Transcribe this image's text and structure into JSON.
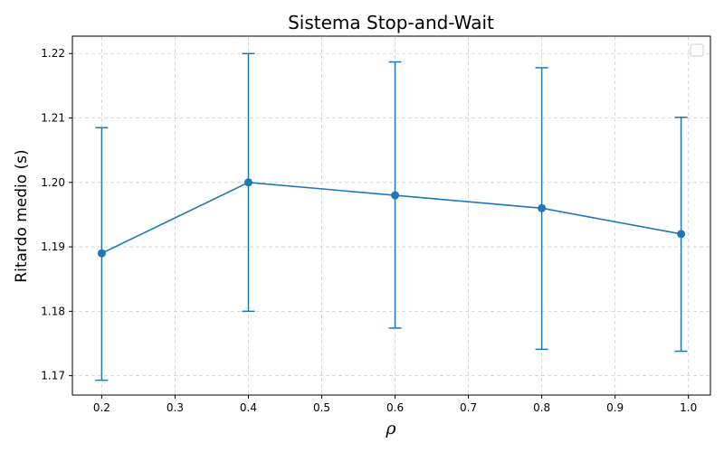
{
  "chart_data": {
    "type": "line",
    "title": "Sistema Stop-and-Wait",
    "xlabel": "ρ",
    "ylabel": "Ritardo medio (s)",
    "xlim": [
      0.16,
      1.03
    ],
    "ylim": [
      1.167,
      1.2227
    ],
    "x_ticks": [
      0.2,
      0.3,
      0.4,
      0.5,
      0.6,
      0.7,
      0.8,
      0.9,
      1.0
    ],
    "x_tick_labels": [
      "0.2",
      "0.3",
      "0.4",
      "0.5",
      "0.6",
      "0.7",
      "0.8",
      "0.9",
      "1.0"
    ],
    "y_ticks": [
      1.17,
      1.18,
      1.19,
      1.2,
      1.21,
      1.22
    ],
    "y_tick_labels": [
      "1.17",
      "1.18",
      "1.19",
      "1.20",
      "1.21",
      "1.22"
    ],
    "grid": true,
    "grid_style": "dashed",
    "legend_placement": "top-right",
    "legend_entries": [],
    "color": "#1f77b4",
    "series": [
      {
        "x": [
          0.2,
          0.4,
          0.6,
          0.8,
          0.99
        ],
        "y": [
          1.189,
          1.2,
          1.198,
          1.196,
          1.192
        ],
        "error_low": [
          1.1693,
          1.18,
          1.1774,
          1.1741,
          1.1738
        ],
        "error_high": [
          1.2085,
          1.22,
          1.2187,
          1.2178,
          1.2101
        ]
      }
    ]
  }
}
